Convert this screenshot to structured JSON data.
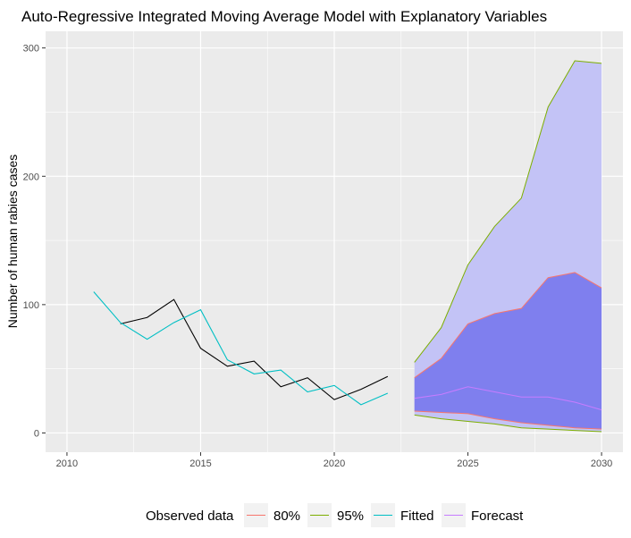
{
  "chart_data": {
    "type": "line",
    "title": "Auto-Regressive Integrated Moving Average Model with Explanatory Variables",
    "xlabel": "",
    "ylabel": "Number of human rabies cases",
    "xlim": [
      2009.2,
      2030.8
    ],
    "ylim": [
      -15,
      313
    ],
    "x_ticks": [
      2010,
      2015,
      2020,
      2025,
      2030
    ],
    "y_ticks": [
      0,
      100,
      200,
      300
    ],
    "grid": true,
    "legend_position": "bottom",
    "legend_title": "Observed data",
    "legend_entries": [
      "80%",
      "95%",
      "Fitted",
      "Forecast"
    ],
    "colors": {
      "observed": "#000000",
      "fitted": "#00BFC4",
      "forecast": "#C77CFF",
      "band80_line": "#F8766D",
      "band95_line": "#7CAE00",
      "band80_fill": "#7f7fee",
      "band95_fill": "#c3c3f6",
      "panel_bg": "#ebebeb",
      "grid": "#ffffff"
    },
    "series": [
      {
        "name": "Observed data",
        "x": [
          2012,
          2013,
          2014,
          2015,
          2016,
          2017,
          2018,
          2019,
          2020,
          2021,
          2022
        ],
        "y": [
          85,
          90,
          104,
          66,
          52,
          56,
          36,
          43,
          26,
          34,
          44
        ]
      },
      {
        "name": "Fitted",
        "x": [
          2011,
          2012,
          2013,
          2014,
          2015,
          2016,
          2017,
          2018,
          2019,
          2020,
          2021,
          2022
        ],
        "y": [
          110,
          86,
          73,
          86,
          96,
          57,
          46,
          49,
          32,
          37,
          22,
          31
        ]
      },
      {
        "name": "Forecast",
        "x": [
          2023,
          2024,
          2025,
          2026,
          2027,
          2028,
          2029,
          2030
        ],
        "y": [
          27,
          30,
          36,
          32,
          28,
          28,
          24,
          18
        ]
      }
    ],
    "bands": [
      {
        "name": "95%",
        "x": [
          2023,
          2024,
          2025,
          2026,
          2027,
          2028,
          2029,
          2030
        ],
        "lower": [
          14,
          11,
          9,
          7,
          4,
          3,
          2,
          1
        ],
        "upper": [
          55,
          82,
          131,
          161,
          183,
          254,
          290,
          288
        ]
      },
      {
        "name": "80%",
        "x": [
          2023,
          2024,
          2025,
          2026,
          2027,
          2028,
          2029,
          2030
        ],
        "lower": [
          17,
          16,
          15,
          11,
          8,
          6,
          4,
          3
        ],
        "upper": [
          43,
          58,
          85,
          93,
          97,
          121,
          125,
          113
        ]
      }
    ]
  }
}
